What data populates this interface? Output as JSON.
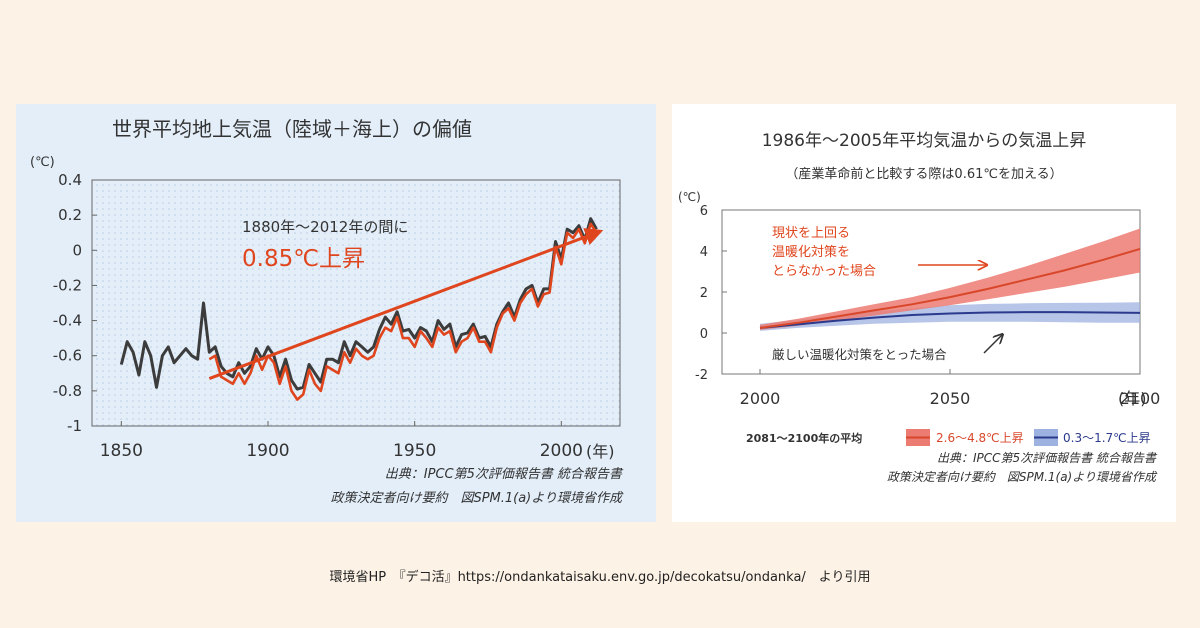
{
  "footer": "環境省HP　『デコ活』https://ondankataisaku.env.go.jp/decokatsu/ondanka/　より引用",
  "chart_data": [
    {
      "type": "line",
      "title": "世界平均地上気温（陸域＋海上）の偏値",
      "ylabel": "(℃)",
      "xlabel": "(年)",
      "x_ticks": [
        "1850",
        "1900",
        "1950",
        "2000"
      ],
      "y_ticks": [
        "0.4",
        "0.2",
        "0",
        "-0.2",
        "-0.4",
        "-0.6",
        "-0.8",
        "-1"
      ],
      "xlim": [
        1840,
        2020
      ],
      "ylim": [
        -1,
        0.4
      ],
      "grid": false,
      "annotations": [
        "1880年～2012年の間に",
        "0.85℃上昇"
      ],
      "source": [
        "出典：IPCC第5次評価報告書 統合報告書",
        "政策決定者向け要約　図SPM.1(a)より環境省作成"
      ],
      "trend": {
        "x": [
          1880,
          2012
        ],
        "y": [
          -0.73,
          0.1
        ]
      },
      "colors": {
        "dark": "#3c3c3c",
        "red": "#e0461e",
        "trend": "#e0461e",
        "annotation": "#e0461e"
      },
      "series": [
        {
          "x": [
            1850,
            1852,
            1854,
            1856,
            1858,
            1860,
            1862,
            1864,
            1866,
            1868,
            1870,
            1872,
            1874,
            1876,
            1878,
            1880,
            1882,
            1884,
            1886,
            1888,
            1890,
            1892,
            1894,
            1896,
            1898,
            1900,
            1902,
            1904,
            1906,
            1908,
            1910,
            1912,
            1914,
            1916,
            1918,
            1920,
            1922,
            1924,
            1926,
            1928,
            1930,
            1932,
            1934,
            1936,
            1938,
            1940,
            1942,
            1944,
            1946,
            1948,
            1950,
            1952,
            1954,
            1956,
            1958,
            1960,
            1962,
            1964,
            1966,
            1968,
            1970,
            1972,
            1974,
            1976,
            1978,
            1980,
            1982,
            1984,
            1986,
            1988,
            1990,
            1992,
            1994,
            1996,
            1998,
            2000,
            2002,
            2004,
            2006,
            2008,
            2010,
            2012
          ],
          "y": [
            -0.65,
            -0.52,
            -0.58,
            -0.71,
            -0.52,
            -0.6,
            -0.78,
            -0.6,
            -0.55,
            -0.64,
            -0.6,
            -0.56,
            -0.6,
            -0.62,
            -0.3,
            -0.58,
            -0.55,
            -0.66,
            -0.7,
            -0.72,
            -0.64,
            -0.7,
            -0.66,
            -0.56,
            -0.62,
            -0.55,
            -0.6,
            -0.72,
            -0.62,
            -0.74,
            -0.79,
            -0.78,
            -0.65,
            -0.7,
            -0.75,
            -0.62,
            -0.62,
            -0.64,
            -0.52,
            -0.6,
            -0.52,
            -0.55,
            -0.58,
            -0.55,
            -0.45,
            -0.38,
            -0.42,
            -0.35,
            -0.46,
            -0.45,
            -0.5,
            -0.44,
            -0.46,
            -0.52,
            -0.4,
            -0.45,
            -0.42,
            -0.55,
            -0.48,
            -0.47,
            -0.42,
            -0.5,
            -0.49,
            -0.55,
            -0.42,
            -0.35,
            -0.3,
            -0.38,
            -0.28,
            -0.22,
            -0.2,
            -0.3,
            -0.22,
            -0.22,
            0.05,
            -0.05,
            0.12,
            0.1,
            0.14,
            0.06,
            0.18,
            0.12
          ]
        },
        {
          "x": [
            1880,
            1882,
            1884,
            1886,
            1888,
            1890,
            1892,
            1894,
            1896,
            1898,
            1900,
            1902,
            1904,
            1906,
            1908,
            1910,
            1912,
            1914,
            1916,
            1918,
            1920,
            1922,
            1924,
            1926,
            1928,
            1930,
            1932,
            1934,
            1936,
            1938,
            1940,
            1942,
            1944,
            1946,
            1948,
            1950,
            1952,
            1954,
            1956,
            1958,
            1960,
            1962,
            1964,
            1966,
            1968,
            1970,
            1972,
            1974,
            1976,
            1978,
            1980,
            1982,
            1984,
            1986,
            1988,
            1990,
            1992,
            1994,
            1996,
            1998,
            2000,
            2002,
            2004,
            2006,
            2008,
            2010,
            2012
          ],
          "y": [
            -0.62,
            -0.6,
            -0.72,
            -0.74,
            -0.76,
            -0.7,
            -0.76,
            -0.7,
            -0.6,
            -0.68,
            -0.6,
            -0.64,
            -0.76,
            -0.66,
            -0.8,
            -0.85,
            -0.82,
            -0.68,
            -0.76,
            -0.8,
            -0.66,
            -0.68,
            -0.7,
            -0.58,
            -0.64,
            -0.56,
            -0.6,
            -0.62,
            -0.6,
            -0.5,
            -0.44,
            -0.46,
            -0.38,
            -0.5,
            -0.5,
            -0.55,
            -0.46,
            -0.5,
            -0.55,
            -0.44,
            -0.48,
            -0.46,
            -0.58,
            -0.52,
            -0.5,
            -0.44,
            -0.52,
            -0.52,
            -0.58,
            -0.44,
            -0.36,
            -0.33,
            -0.4,
            -0.3,
            -0.25,
            -0.22,
            -0.32,
            -0.25,
            -0.24,
            0.02,
            -0.08,
            0.1,
            0.07,
            0.12,
            0.04,
            0.15,
            0.1
          ]
        }
      ]
    },
    {
      "type": "area",
      "title": "1986年～2005年平均気温からの気温上昇",
      "subtitle": "（産業革命前と比較する際は0.61℃を加える）",
      "ylabel": "(℃)",
      "xlabel": "(年)",
      "x_ticks": [
        "2000",
        "2050",
        "2100"
      ],
      "y_ticks": [
        "6",
        "4",
        "2",
        "0",
        "-2"
      ],
      "xlim": [
        1990,
        2100
      ],
      "ylim": [
        -2,
        6
      ],
      "grid": false,
      "legend_placement": "bottom",
      "legend_title": "2081～2100年の平均",
      "annotations": [
        "現状を上回る",
        "温暖化対策を",
        "とらなかった場合",
        "厳しい温暖化対策をとった場合"
      ],
      "source": [
        "出典：IPCC第5次評価報告書 統合報告書",
        "政策決定者向け要約　図SPM.1(a)より環境省作成"
      ],
      "colors": {
        "high_band": "#ec7b72",
        "high_line": "#d9472b",
        "low_band": "#9db2e0",
        "low_line": "#2b3a8c",
        "annotation": "#e0461e"
      },
      "series": [
        {
          "name": "2.6～4.8℃上昇",
          "x": [
            2000,
            2010,
            2020,
            2030,
            2040,
            2050,
            2060,
            2070,
            2080,
            2090,
            2100
          ],
          "y": [
            0.25,
            0.5,
            0.8,
            1.1,
            1.4,
            1.75,
            2.15,
            2.6,
            3.05,
            3.55,
            4.1
          ],
          "low": [
            0.15,
            0.35,
            0.6,
            0.85,
            1.1,
            1.35,
            1.65,
            1.95,
            2.25,
            2.6,
            2.95
          ],
          "high": [
            0.4,
            0.7,
            1.05,
            1.4,
            1.75,
            2.2,
            2.7,
            3.25,
            3.85,
            4.45,
            5.1
          ]
        },
        {
          "name": "0.3～1.7℃上昇",
          "x": [
            2000,
            2010,
            2020,
            2030,
            2040,
            2050,
            2060,
            2070,
            2080,
            2090,
            2100
          ],
          "y": [
            0.25,
            0.42,
            0.6,
            0.75,
            0.88,
            0.95,
            1.0,
            1.02,
            1.02,
            1.0,
            0.98
          ],
          "low": [
            0.1,
            0.25,
            0.35,
            0.45,
            0.5,
            0.55,
            0.55,
            0.55,
            0.52,
            0.5,
            0.5
          ],
          "high": [
            0.45,
            0.65,
            0.85,
            1.05,
            1.2,
            1.35,
            1.42,
            1.45,
            1.47,
            1.48,
            1.5
          ]
        }
      ]
    }
  ]
}
